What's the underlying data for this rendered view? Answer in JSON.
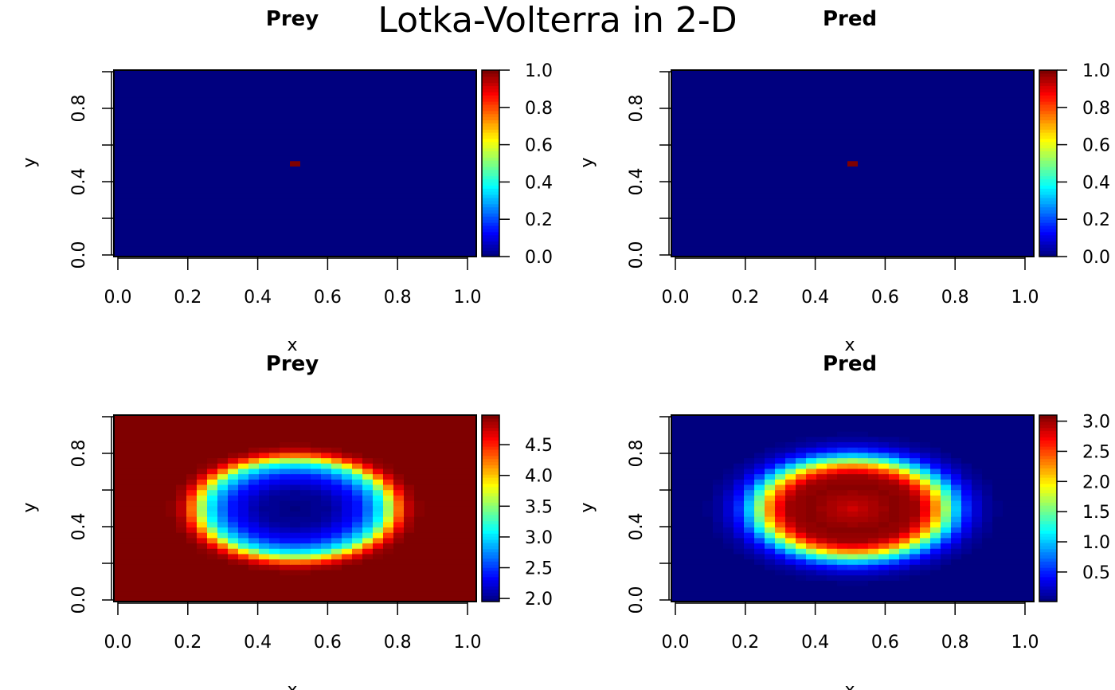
{
  "title": "Lotka-Volterra in 2-D",
  "chart_data": [
    {
      "type": "heatmap",
      "title": "Prey",
      "xlabel": "x",
      "ylabel": "y",
      "xlim": [
        0,
        1
      ],
      "ylim": [
        0,
        1
      ],
      "x_ticks": [
        "0.0",
        "0.2",
        "0.4",
        "0.6",
        "0.8",
        "1.0"
      ],
      "y_ticks": [
        "0.0",
        "0.4",
        "0.8"
      ],
      "zlim": [
        0,
        1
      ],
      "colorbar_ticks": [
        "0.0",
        "0.2",
        "0.4",
        "0.6",
        "0.8",
        "1.0"
      ],
      "colorbar_tick_values": [
        0,
        0.2,
        0.4,
        0.6,
        0.8,
        1.0
      ],
      "field": {
        "kind": "point",
        "background": 0,
        "peak": 1,
        "center": [
          0.5,
          0.5
        ]
      }
    },
    {
      "type": "heatmap",
      "title": "Pred",
      "xlabel": "x",
      "ylabel": "y",
      "xlim": [
        0,
        1
      ],
      "ylim": [
        0,
        1
      ],
      "x_ticks": [
        "0.0",
        "0.2",
        "0.4",
        "0.6",
        "0.8",
        "1.0"
      ],
      "y_ticks": [
        "0.0",
        "0.4",
        "0.8"
      ],
      "zlim": [
        0,
        1
      ],
      "colorbar_ticks": [
        "0.0",
        "0.2",
        "0.4",
        "0.6",
        "0.8",
        "1.0"
      ],
      "colorbar_tick_values": [
        0,
        0.2,
        0.4,
        0.6,
        0.8,
        1.0
      ],
      "field": {
        "kind": "point",
        "background": 0,
        "peak": 1,
        "center": [
          0.5,
          0.5
        ]
      }
    },
    {
      "type": "heatmap",
      "title": "Prey",
      "xlabel": "x",
      "ylabel": "y",
      "xlim": [
        0,
        1
      ],
      "ylim": [
        0,
        1
      ],
      "x_ticks": [
        "0.0",
        "0.2",
        "0.4",
        "0.6",
        "0.8",
        "1.0"
      ],
      "y_ticks": [
        "0.0",
        "0.4",
        "0.8"
      ],
      "zlim": [
        1.95,
        4.98
      ],
      "colorbar_ticks": [
        "2.0",
        "2.5",
        "3.0",
        "3.5",
        "4.0",
        "4.5"
      ],
      "colorbar_tick_values": [
        2.0,
        2.5,
        3.0,
        3.5,
        4.0,
        4.5
      ],
      "field": {
        "kind": "radial",
        "center": [
          0.5,
          0.5
        ],
        "r": [
          0,
          0.1,
          0.18,
          0.22,
          0.25,
          0.27,
          0.29,
          0.31,
          0.33,
          0.36,
          0.7
        ],
        "z": [
          1.97,
          2.05,
          2.4,
          2.8,
          3.2,
          3.7,
          4.2,
          4.6,
          4.85,
          4.97,
          4.98
        ]
      }
    },
    {
      "type": "heatmap",
      "title": "Pred",
      "xlabel": "x",
      "ylabel": "y",
      "xlim": [
        0,
        1
      ],
      "ylim": [
        0,
        1
      ],
      "x_ticks": [
        "0.0",
        "0.2",
        "0.4",
        "0.6",
        "0.8",
        "1.0"
      ],
      "y_ticks": [
        "0.0",
        "0.4",
        "0.8"
      ],
      "zlim": [
        0.01,
        3.1
      ],
      "colorbar_ticks": [
        "0.5",
        "1.0",
        "1.5",
        "2.0",
        "2.5",
        "3.0"
      ],
      "colorbar_tick_values": [
        0.5,
        1.0,
        1.5,
        2.0,
        2.5,
        3.0
      ],
      "field": {
        "kind": "radial",
        "center": [
          0.5,
          0.5
        ],
        "r": [
          0,
          0.05,
          0.12,
          0.18,
          0.21,
          0.24,
          0.27,
          0.3,
          0.33,
          0.37,
          0.42,
          0.7
        ],
        "z": [
          2.85,
          2.95,
          3.05,
          3.0,
          2.7,
          2.2,
          1.5,
          0.9,
          0.45,
          0.15,
          0.03,
          0.01
        ]
      }
    }
  ]
}
